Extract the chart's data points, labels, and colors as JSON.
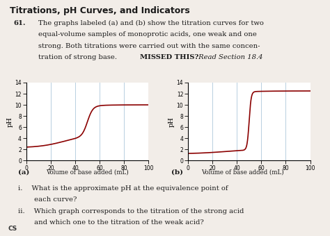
{
  "title": "Titrations, pH Curves, and Indicators",
  "q_num": "61.",
  "q_line1": "The graphs labeled (a) and (b) show the titration curves for two",
  "q_line2": "equal-volume samples of monoprotic acids, one weak and one",
  "q_line3": "strong. Both titrations were carried out with the same concen-",
  "q_line4_pre": "tration of strong base. ",
  "q_missed": "MISSED THIS?",
  "q_section": " Read Section 18.4",
  "xlabel": "Volume of base added (mL)",
  "ylabel": "pH",
  "label_a": "(a)",
  "label_b": "(b)",
  "sub_i_a": "i.  What is the approximate pH at the equivalence point of",
  "sub_i_b": "   each curve?",
  "sub_ii_a": "ii.  Which graph corresponds to the titration of the strong acid",
  "sub_ii_b": "   and which one to the titration of the weak acid?",
  "xlim": [
    0,
    100
  ],
  "ylim": [
    0,
    14
  ],
  "xticks": [
    0,
    20,
    40,
    60,
    80,
    100
  ],
  "yticks": [
    0,
    2,
    4,
    6,
    8,
    10,
    12,
    14
  ],
  "curve_color": "#8B0000",
  "grid_color": "#b8cfe0",
  "bg_color": "#ffffff",
  "page_color": "#f2ede8",
  "text_color": "#1a1a1a"
}
